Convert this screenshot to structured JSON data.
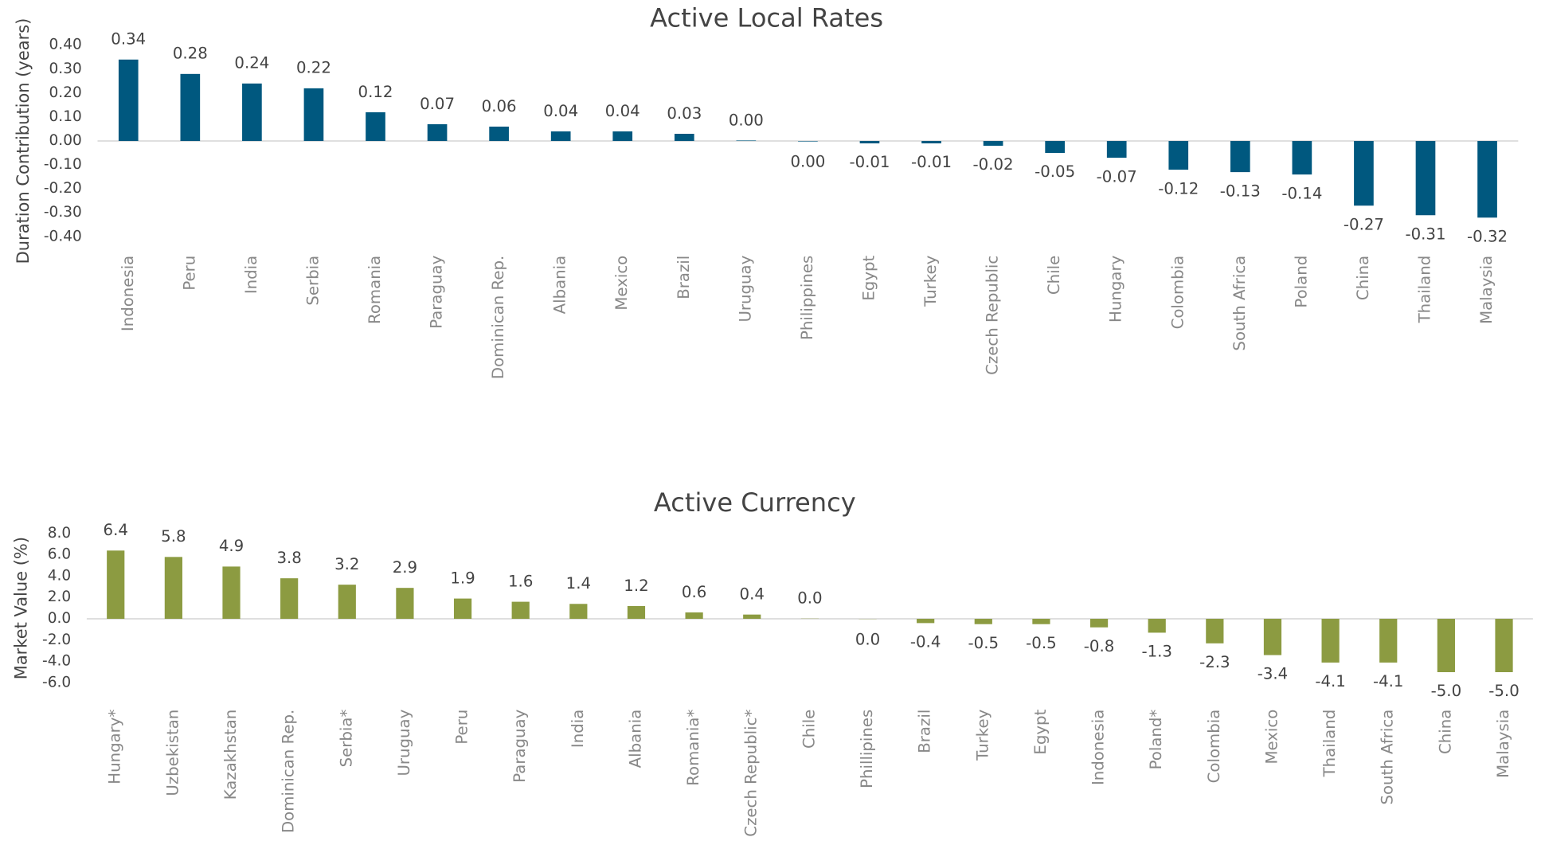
{
  "chart_data": [
    {
      "type": "bar",
      "title": "Active Local Rates",
      "y_label": "Duration Contribution (years)",
      "color": "#00587f",
      "categories": [
        "Indonesia",
        "Peru",
        "India",
        "Serbia",
        "Romania",
        "Paraguay",
        "Dominican Rep.",
        "Albania",
        "Mexico",
        "Brazil",
        "Uruguay",
        "Philippines",
        "Egypt",
        "Turkey",
        "Czech Republic",
        "Chile",
        "Hungary",
        "Colombia",
        "South Africa",
        "Poland",
        "China",
        "Thailand",
        "Malaysia"
      ],
      "values": [
        0.34,
        0.28,
        0.24,
        0.22,
        0.12,
        0.07,
        0.06,
        0.04,
        0.04,
        0.03,
        0.002,
        -0.002,
        -0.01,
        -0.01,
        -0.02,
        -0.05,
        -0.07,
        -0.12,
        -0.13,
        -0.14,
        -0.27,
        -0.31,
        -0.32
      ],
      "value_labels": [
        "0.34",
        "0.28",
        "0.24",
        "0.22",
        "0.12",
        "0.07",
        "0.06",
        "0.04",
        "0.04",
        "0.03",
        "0.00",
        "0.00",
        "-0.01",
        "-0.01",
        "-0.02",
        "-0.05",
        "-0.07",
        "-0.12",
        "-0.13",
        "-0.14",
        "-0.27",
        "-0.31",
        "-0.32"
      ],
      "ylim": [
        -0.4,
        0.4
      ],
      "yticks": [
        {
          "value": 0.4,
          "label": "0.40"
        },
        {
          "value": 0.3,
          "label": "0.30"
        },
        {
          "value": 0.2,
          "label": "0.20"
        },
        {
          "value": 0.1,
          "label": "0.10"
        },
        {
          "value": 0,
          "label": "0.00"
        },
        {
          "value": -0.1,
          "label": "-0.10"
        },
        {
          "value": -0.2,
          "label": "-0.20"
        },
        {
          "value": -0.3,
          "label": "-0.30"
        },
        {
          "value": -0.4,
          "label": "-0.40"
        }
      ]
    },
    {
      "type": "bar",
      "title": "Active Currency",
      "y_label": "Market Value (%)",
      "color": "#8c9b41",
      "categories": [
        "Hungary*",
        "Uzbekistan",
        "Kazakhstan",
        "Dominican Rep.",
        "Serbia*",
        "Uruguay",
        "Peru",
        "Paraguay",
        "India",
        "Albania",
        "Romania*",
        "Czech Republic*",
        "Chile",
        "Phillipines",
        "Brazil",
        "Turkey",
        "Egypt",
        "Indonesia",
        "Poland*",
        "Colombia",
        "Mexico",
        "Thailand",
        "South Africa",
        "China",
        "Malaysia"
      ],
      "values": [
        6.4,
        5.8,
        4.9,
        3.8,
        3.2,
        2.9,
        1.9,
        1.6,
        1.4,
        1.2,
        0.6,
        0.4,
        0.02,
        -0.02,
        -0.4,
        -0.5,
        -0.5,
        -0.8,
        -1.3,
        -2.3,
        -3.4,
        -4.1,
        -4.1,
        -5.0,
        -5.0
      ],
      "value_labels": [
        "6.4",
        "5.8",
        "4.9",
        "3.8",
        "3.2",
        "2.9",
        "1.9",
        "1.6",
        "1.4",
        "1.2",
        "0.6",
        "0.4",
        "0.0",
        "0.0",
        "-0.4",
        "-0.5",
        "-0.5",
        "-0.8",
        "-1.3",
        "-2.3",
        "-3.4",
        "-4.1",
        "-4.1",
        "-5.0",
        "-5.0"
      ],
      "ylim": [
        -6,
        8
      ],
      "yticks": [
        {
          "value": 8,
          "label": "8.0"
        },
        {
          "value": 6,
          "label": "6.0"
        },
        {
          "value": 4,
          "label": "4.0"
        },
        {
          "value": 2,
          "label": "2.0"
        },
        {
          "value": 0,
          "label": "0.0"
        },
        {
          "value": -2,
          "label": "-2.0"
        },
        {
          "value": -4,
          "label": "-4.0"
        },
        {
          "value": -6,
          "label": "-6.0"
        }
      ]
    }
  ]
}
